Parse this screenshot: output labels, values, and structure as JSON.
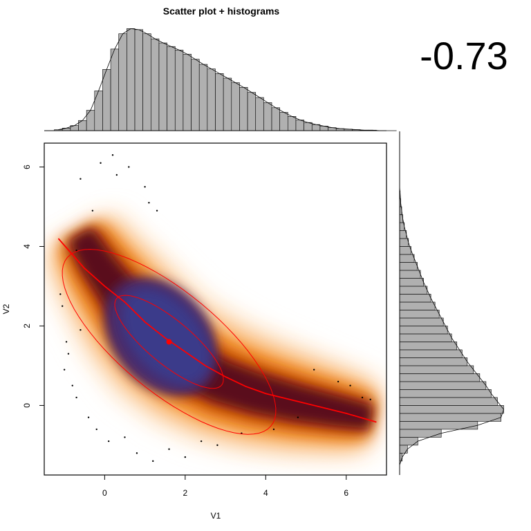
{
  "chart_data": {
    "type": "scatter",
    "title": "Scatter plot + histograms",
    "correlation_label": "-0.73",
    "xlabel": "V1",
    "ylabel": "V2",
    "xlim": [
      -1.5,
      7.0
    ],
    "ylim": [
      -1.75,
      6.6
    ],
    "x_ticks": [
      0,
      2,
      4,
      6
    ],
    "y_ticks": [
      0,
      2,
      4,
      6
    ],
    "colors": {
      "density_low": "#fde0c0",
      "density_mid": "#f07a10",
      "density_high": "#5a0a1a",
      "density_core": "#3a3a8a",
      "fit_line": "#ff0000",
      "hist_fill": "#b0b0b0",
      "hist_stroke": "#000000"
    },
    "density_core": {
      "mean": [
        1.6,
        1.6
      ],
      "ellipse_inner_halfaxes": [
        1.7,
        0.55
      ],
      "ellipse_outer_halfaxes": [
        3.3,
        1.25
      ],
      "ellipse_angle_deg": -40
    },
    "fit_line": {
      "points": [
        [
          -1.15,
          4.2
        ],
        [
          -0.5,
          3.45
        ],
        [
          0.0,
          3.0
        ],
        [
          0.5,
          2.6
        ],
        [
          1.0,
          2.1
        ],
        [
          1.5,
          1.7
        ],
        [
          2.0,
          1.35
        ],
        [
          2.5,
          1.0
        ],
        [
          3.0,
          0.72
        ],
        [
          3.5,
          0.48
        ],
        [
          4.0,
          0.3
        ],
        [
          5.0,
          0.05
        ],
        [
          6.0,
          -0.2
        ],
        [
          6.75,
          -0.42
        ]
      ]
    },
    "mean_point": [
      1.6,
      1.6
    ],
    "outliers": [
      [
        -1.1,
        2.8
      ],
      [
        -1.05,
        2.5
      ],
      [
        -0.95,
        1.6
      ],
      [
        -0.9,
        1.3
      ],
      [
        -1.0,
        0.9
      ],
      [
        -0.8,
        0.5
      ],
      [
        -0.6,
        1.9
      ],
      [
        -0.7,
        0.2
      ],
      [
        -0.4,
        -0.3
      ],
      [
        -0.2,
        -0.6
      ],
      [
        0.1,
        -0.9
      ],
      [
        0.5,
        -0.8
      ],
      [
        0.8,
        -1.2
      ],
      [
        1.2,
        -1.4
      ],
      [
        1.6,
        -1.1
      ],
      [
        2.0,
        -1.3
      ],
      [
        2.4,
        -0.9
      ],
      [
        2.8,
        -1.0
      ],
      [
        3.4,
        -0.7
      ],
      [
        4.2,
        -0.6
      ],
      [
        4.8,
        -0.3
      ],
      [
        5.2,
        0.9
      ],
      [
        5.8,
        0.6
      ],
      [
        6.1,
        0.5
      ],
      [
        6.4,
        0.2
      ],
      [
        6.6,
        0.15
      ],
      [
        0.3,
        5.8
      ],
      [
        0.6,
        6.0
      ],
      [
        1.0,
        5.5
      ],
      [
        1.1,
        5.1
      ],
      [
        -0.6,
        5.7
      ],
      [
        -0.3,
        4.9
      ],
      [
        1.3,
        4.9
      ],
      [
        0.2,
        6.3
      ],
      [
        -0.1,
        6.1
      ],
      [
        -0.7,
        3.9
      ]
    ],
    "histogram_v1": {
      "bin_start": -1.25,
      "bin_width": 0.2,
      "counts": [
        2,
        5,
        10,
        20,
        40,
        78,
        120,
        160,
        190,
        200,
        198,
        190,
        180,
        172,
        165,
        158,
        150,
        140,
        130,
        121,
        112,
        103,
        94,
        85,
        75,
        65,
        55,
        45,
        36,
        28,
        21,
        16,
        12,
        9,
        6,
        4,
        3,
        2,
        1,
        1,
        0,
        0,
        0
      ],
      "ymax": 210
    },
    "histogram_v2": {
      "bin_start": -1.6,
      "bin_width": 0.2,
      "counts": [
        0,
        5,
        15,
        35,
        80,
        150,
        195,
        200,
        188,
        176,
        166,
        154,
        142,
        130,
        120,
        110,
        100,
        92,
        84,
        76,
        68,
        60,
        53,
        46,
        40,
        34,
        28,
        22,
        17,
        13,
        9,
        6,
        4,
        2,
        1,
        0,
        0,
        0,
        0,
        0,
        0
      ],
      "ymax": 210
    }
  }
}
